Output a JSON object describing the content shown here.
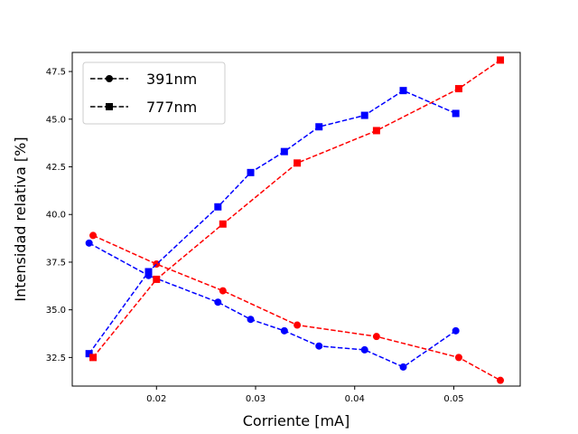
{
  "chart_data": {
    "type": "line",
    "xlabel": "Corriente [mA]",
    "ylabel": "Intensidad relativa [%]",
    "xlim": [
      0.0115,
      0.0567
    ],
    "ylim": [
      31.0,
      48.5
    ],
    "xticks": [
      0.02,
      0.03,
      0.04,
      0.05
    ],
    "xtick_labels": [
      "0.02",
      "0.03",
      "0.04",
      "0.05"
    ],
    "yticks": [
      32.5,
      35.0,
      37.5,
      40.0,
      42.5,
      45.0,
      47.5
    ],
    "ytick_labels": [
      "32.5",
      "35.0",
      "37.5",
      "40.0",
      "42.5",
      "45.0",
      "47.5"
    ],
    "grid": false,
    "legend_position": "top-left",
    "legend": [
      {
        "label": "391nm",
        "marker": "circle"
      },
      {
        "label": "777nm",
        "marker": "square"
      }
    ],
    "series": [
      {
        "marker": "circle",
        "color": "#0000ff",
        "x": [
          0.0132,
          0.0192,
          0.0262,
          0.0295,
          0.0329,
          0.0364,
          0.041,
          0.0449,
          0.0502
        ],
        "y": [
          38.5,
          36.8,
          35.4,
          34.5,
          33.9,
          33.1,
          32.9,
          32.0,
          33.9
        ]
      },
      {
        "marker": "circle",
        "color": "#ff0000",
        "x": [
          0.0136,
          0.02,
          0.0267,
          0.0342,
          0.0422,
          0.0505,
          0.0547
        ],
        "y": [
          38.9,
          37.4,
          36.0,
          34.2,
          33.6,
          32.5,
          31.3
        ]
      },
      {
        "marker": "square",
        "color": "#0000ff",
        "x": [
          0.0132,
          0.0192,
          0.0262,
          0.0295,
          0.0329,
          0.0364,
          0.041,
          0.0449,
          0.0502
        ],
        "y": [
          32.7,
          37.0,
          40.4,
          42.2,
          43.3,
          44.6,
          45.2,
          46.5,
          45.3
        ]
      },
      {
        "marker": "square",
        "color": "#ff0000",
        "x": [
          0.0136,
          0.02,
          0.0267,
          0.0342,
          0.0422,
          0.0505,
          0.0547
        ],
        "y": [
          32.5,
          36.6,
          39.5,
          42.7,
          44.4,
          46.6,
          48.1
        ]
      }
    ]
  }
}
